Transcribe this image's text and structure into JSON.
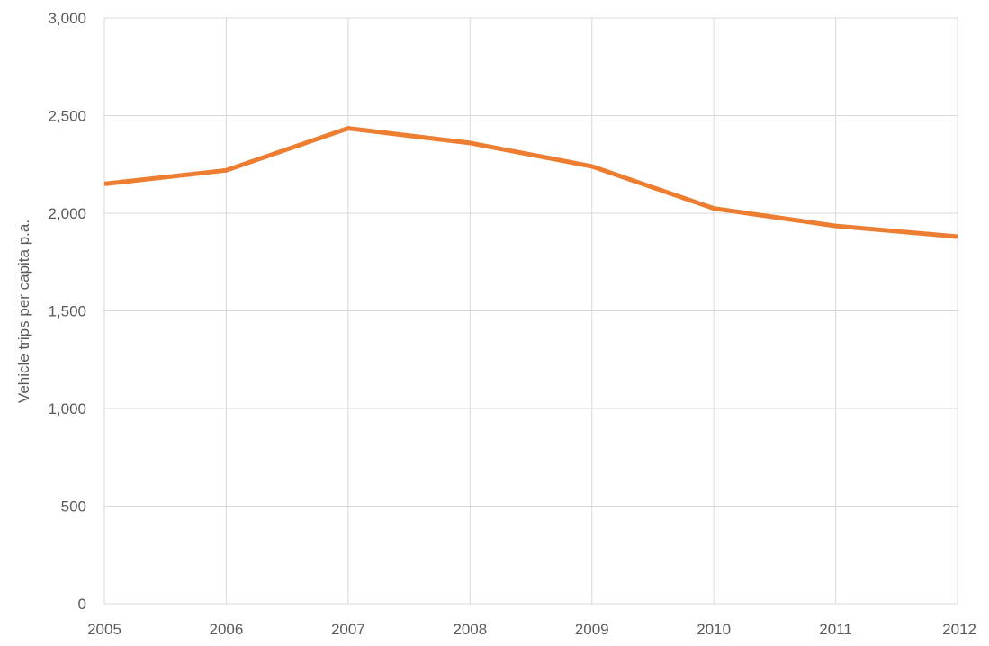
{
  "chart_data": {
    "type": "line",
    "title": "",
    "xlabel": "",
    "ylabel": "Vehicle trips per capita p.a.",
    "x": [
      "2005",
      "2006",
      "2007",
      "2008",
      "2009",
      "2010",
      "2011",
      "2012"
    ],
    "series": [
      {
        "values": [
          2150,
          2220,
          2435,
          2360,
          2240,
          2025,
          1935,
          1880
        ],
        "color": "#ED7D31"
      }
    ],
    "ylim": [
      0,
      3000
    ],
    "yticks": [
      0,
      500,
      1000,
      1500,
      2000,
      2500,
      3000
    ],
    "ytick_labels": [
      "0",
      "500",
      "1,000",
      "1,500",
      "2,000",
      "2,500",
      "3,000"
    ],
    "grid": true,
    "legend": "none",
    "colors": {
      "grid": "#D9D9D9",
      "text": "#595959"
    }
  }
}
